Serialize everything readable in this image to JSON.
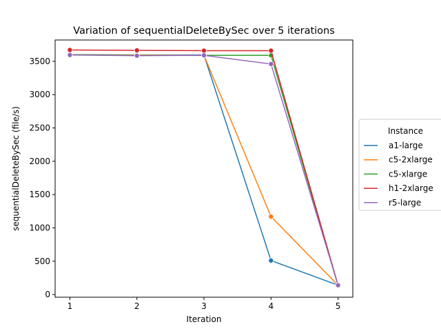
{
  "chart_data": {
    "type": "line",
    "title": "Variation of sequentialDeleteBySec over 5 iterations",
    "xlabel": "Iteration",
    "ylabel": "sequentialDeleteBySec (file/s)",
    "x": [
      1,
      2,
      3,
      4,
      5
    ],
    "x_ticks": [
      "1",
      "2",
      "3",
      "4",
      "5"
    ],
    "xlim": [
      0.78,
      5.22
    ],
    "ylim": [
      -40,
      3820
    ],
    "y_ticks": [
      0,
      500,
      1000,
      1500,
      2000,
      2500,
      3000,
      3500
    ],
    "grid": false,
    "legend_title": "Instance",
    "legend_position": "center-right-outside",
    "series": [
      {
        "name": "a1-large",
        "color": "#1f77b4",
        "values": [
          3600,
          3595,
          3595,
          510,
          140
        ]
      },
      {
        "name": "c5-2xlarge",
        "color": "#ff7f0e",
        "values": [
          3600,
          3595,
          3590,
          1170,
          140
        ]
      },
      {
        "name": "c5-xlarge",
        "color": "#2ca02c",
        "values": [
          3600,
          3590,
          3590,
          3590,
          140
        ]
      },
      {
        "name": "h1-2xlarge",
        "color": "#d62728",
        "values": [
          3670,
          3665,
          3660,
          3660,
          140
        ]
      },
      {
        "name": "r5-large",
        "color": "#9467bd",
        "values": [
          3595,
          3585,
          3590,
          3460,
          140
        ]
      }
    ]
  }
}
